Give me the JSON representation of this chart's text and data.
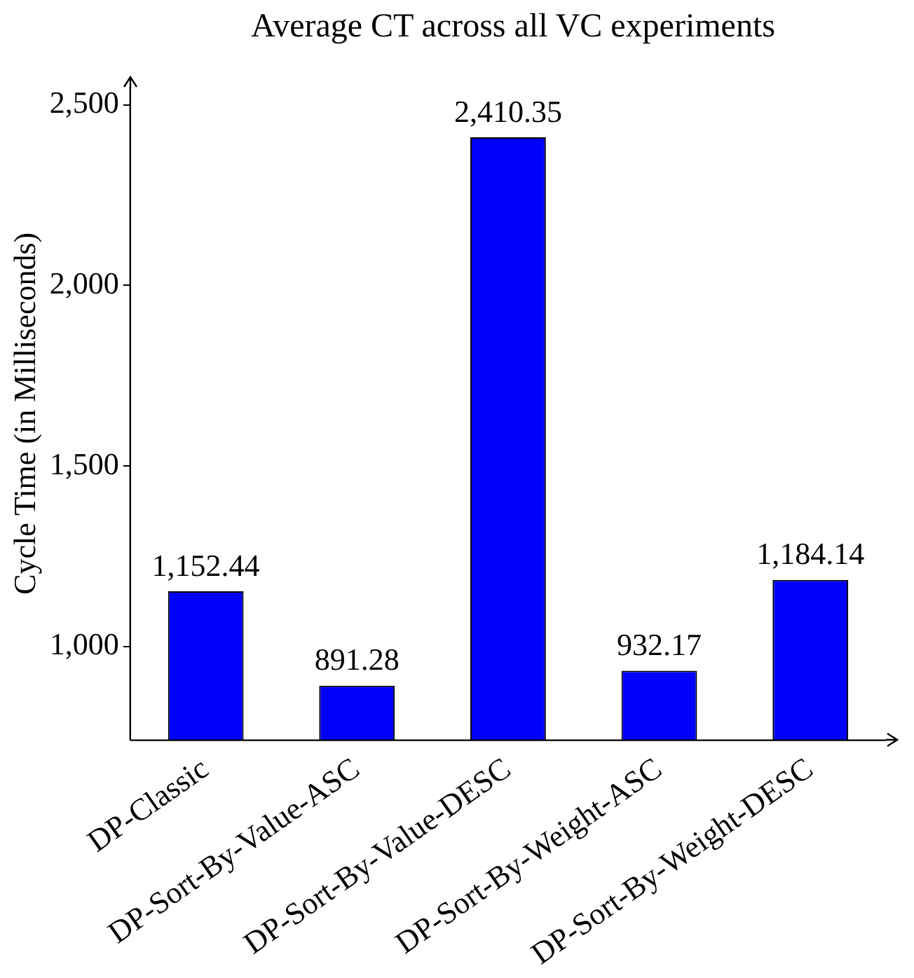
{
  "chart_data": {
    "type": "bar",
    "title": "Average CT across all VC experiments",
    "ylabel": "Cycle Time (in Milliseconds)",
    "categories": [
      "DP-Classic",
      "DP-Sort-By-Value-ASC",
      "DP-Sort-By-Value-DESC",
      "DP-Sort-By-Weight-ASC",
      "DP-Sort-By-Weight-DESC"
    ],
    "values": [
      1152.44,
      891.28,
      2410.35,
      932.17,
      1184.14
    ],
    "value_labels": [
      "1,152.44",
      "891.28",
      "2,410.35",
      "932.17",
      "1,184.14"
    ],
    "color": "#0000ff",
    "ylim": [
      740,
      2550
    ],
    "yticks": [
      {
        "value": 1000,
        "label": "1,000"
      },
      {
        "value": 1500,
        "label": "1,500"
      },
      {
        "value": 2000,
        "label": "2,000"
      },
      {
        "value": 2500,
        "label": "2,500"
      }
    ],
    "grid": false,
    "legend": false
  }
}
